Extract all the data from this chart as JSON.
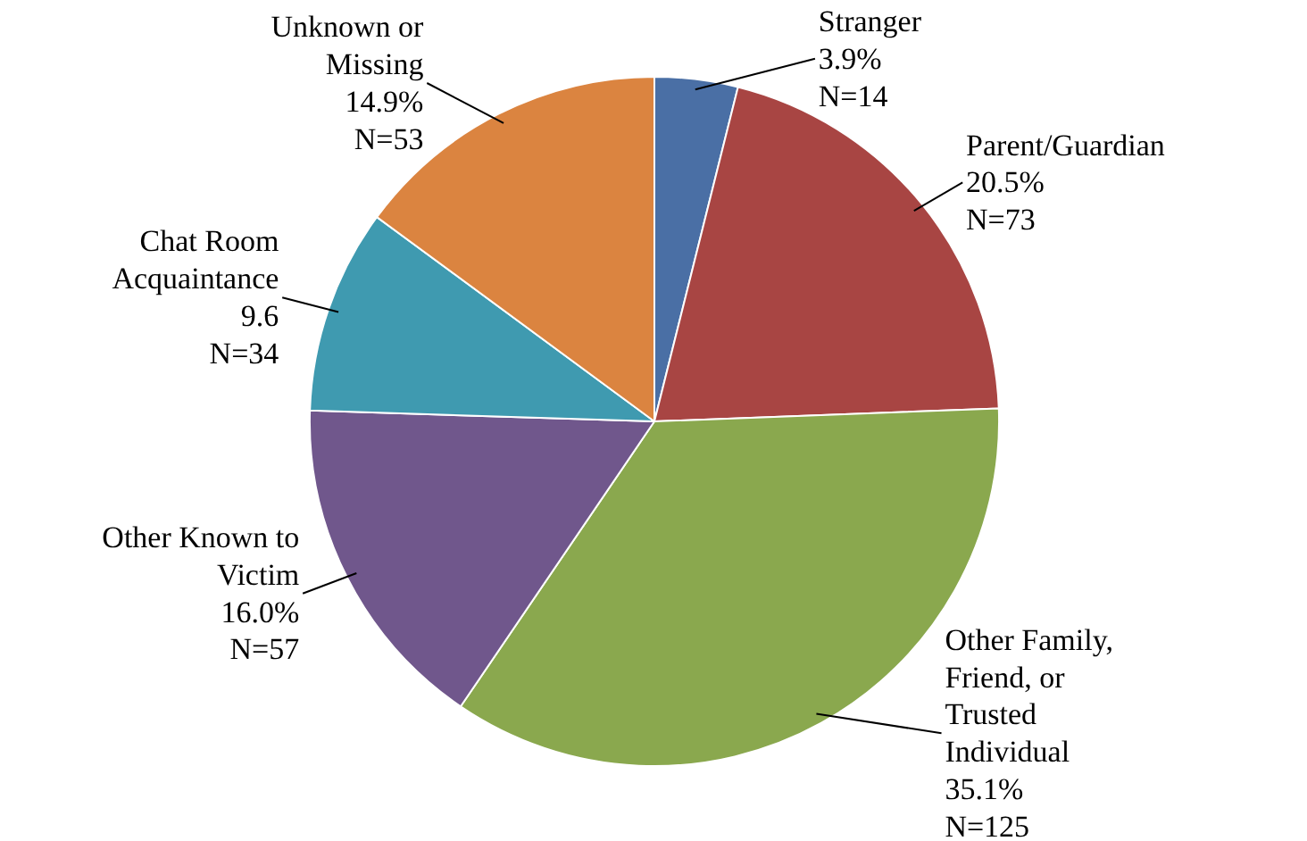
{
  "chart_data": {
    "type": "pie",
    "categories": [
      "Stranger",
      "Parent/Guardian",
      "Other Family,\nFriend, or\nTrusted\nIndividual",
      "Other Known to\nVictim",
      "Chat Room\nAcquaintance",
      "Unknown or\nMissing"
    ],
    "values": [
      3.9,
      20.5,
      35.1,
      16.0,
      9.6,
      14.9
    ],
    "value_labels": [
      "3.9%\nN=14",
      "20.5%\nN=73",
      "35.1%\nN=125",
      "16.0%\nN=57",
      "9.6\nN=34",
      "14.9%\nN=53"
    ],
    "colors": [
      "#4a6fa5",
      "#a84543",
      "#8aa84e",
      "#70578c",
      "#3f9ab0",
      "#db8440"
    ]
  }
}
